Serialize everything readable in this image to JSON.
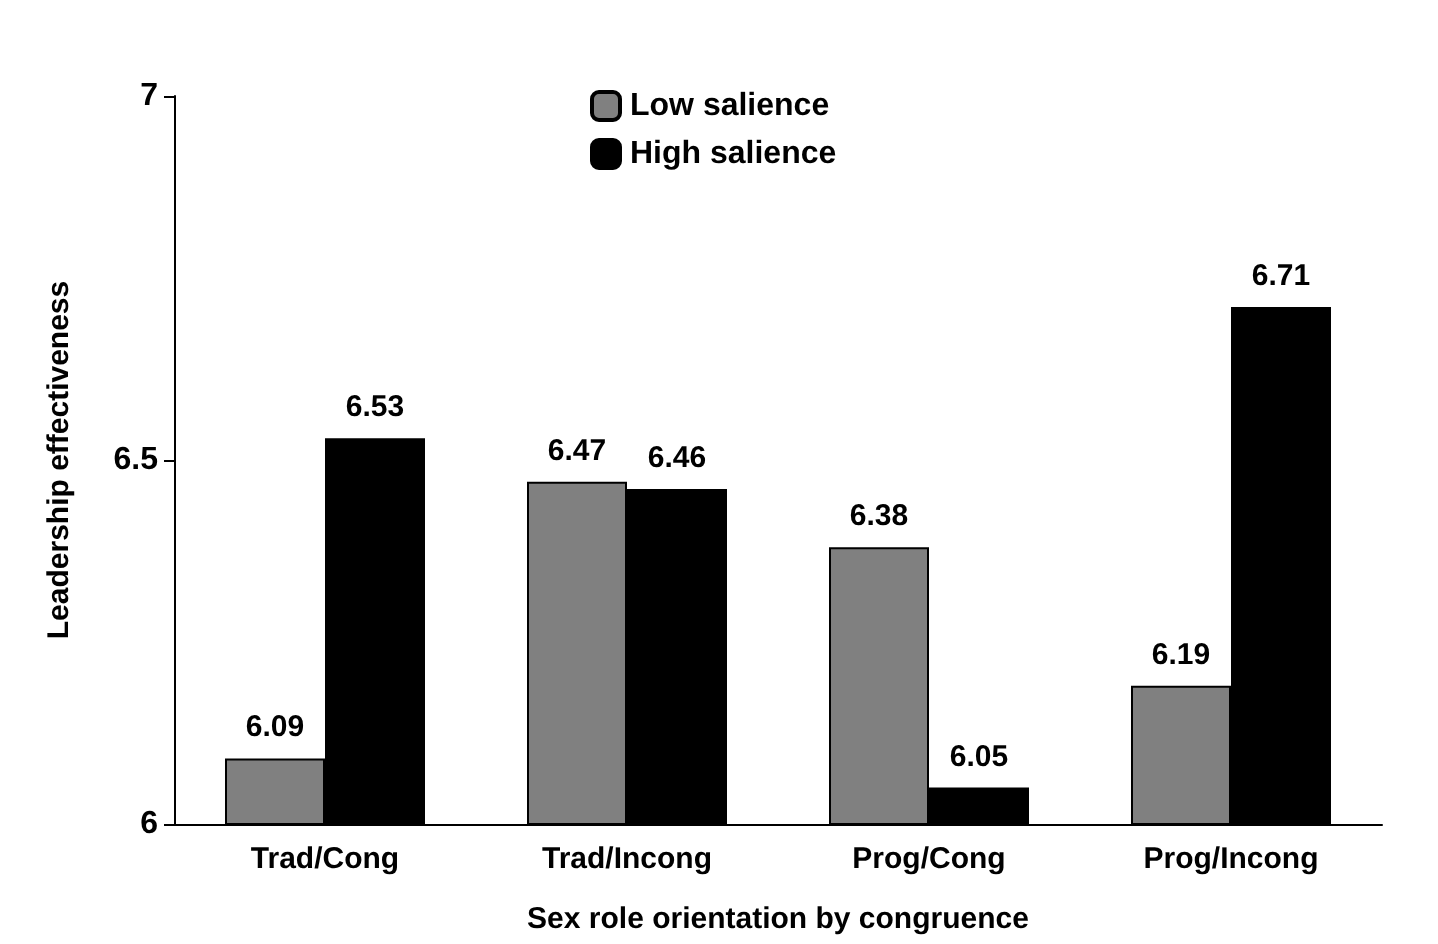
{
  "chart_data": {
    "type": "bar",
    "xlabel": "Sex role orientation by congruence",
    "ylabel": "Leadership effectiveness",
    "categories": [
      "Trad/Cong",
      "Trad/Incong",
      "Prog/Cong",
      "Prog/Incong"
    ],
    "series": [
      {
        "name": "Low salience",
        "color": "#808080",
        "values": [
          6.09,
          6.47,
          6.38,
          6.19
        ]
      },
      {
        "name": "High salience",
        "color": "#000000",
        "values": [
          6.53,
          6.46,
          6.05,
          6.71
        ]
      }
    ],
    "ylim": [
      6,
      7
    ],
    "yticks": [
      6,
      6.5,
      7
    ],
    "grid": false,
    "legend": "top",
    "data_labels": true
  }
}
